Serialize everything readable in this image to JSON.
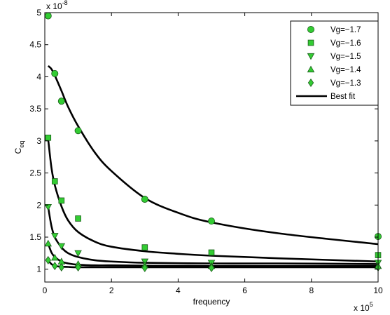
{
  "chart_data": {
    "type": "scatter",
    "xlabel": "frequency",
    "ylabel": "C",
    "ylabel_sub": "eq",
    "x_exponent_label": "x 10",
    "x_exponent": "5",
    "y_exponent_label": "x 10",
    "y_exponent": "-8",
    "xlim": [
      0,
      1000000
    ],
    "ylim": [
      8e-09,
      5e-08
    ],
    "x_ticks": [
      0,
      200000,
      400000,
      600000,
      800000,
      1000000
    ],
    "x_tick_labels": [
      "0",
      "2",
      "4",
      "6",
      "8",
      "10"
    ],
    "y_ticks": [
      1e-08,
      1.5e-08,
      2e-08,
      2.5e-08,
      3e-08,
      3.5e-08,
      4e-08,
      4.5e-08,
      5e-08
    ],
    "y_tick_labels": [
      "1",
      "1.5",
      "2",
      "2.5",
      "3",
      "3.5",
      "4",
      "4.5",
      "5"
    ],
    "grid": false,
    "legend_position": "top-right",
    "marker_color": "#33cc33",
    "fit_color": "#000000",
    "x": [
      10000,
      30000,
      50000,
      100000,
      300000,
      500000,
      1000000
    ],
    "series": [
      {
        "name": "Vg=−1.7",
        "marker": "circle",
        "values": [
          4.95e-08,
          4.05e-08,
          3.62e-08,
          3.16e-08,
          2.09e-08,
          1.75e-08,
          1.51e-08
        ]
      },
      {
        "name": "Vg=−1.6",
        "marker": "square",
        "values": [
          3.05e-08,
          2.37e-08,
          2.07e-08,
          1.79e-08,
          1.34e-08,
          1.26e-08,
          1.22e-08
        ]
      },
      {
        "name": "Vg=−1.5",
        "marker": "triangle-down",
        "values": [
          1.97e-08,
          1.52e-08,
          1.36e-08,
          1.25e-08,
          1.12e-08,
          1.1e-08,
          1.1e-08
        ]
      },
      {
        "name": "Vg=−1.4",
        "marker": "triangle-up",
        "values": [
          1.4e-08,
          1.18e-08,
          1.12e-08,
          1.08e-08,
          1.06e-08,
          1.05e-08,
          1.05e-08
        ]
      },
      {
        "name": "Vg=−1.3",
        "marker": "diamond",
        "values": [
          1.14e-08,
          1.05e-08,
          1.03e-08,
          1.03e-08,
          1.02e-08,
          1.02e-08,
          1.03e-08
        ]
      }
    ],
    "fit_legend": "Best fit",
    "fits": [
      {
        "series": "Vg=−1.7",
        "x": [
          10000,
          20000,
          30000,
          50000,
          70000,
          100000,
          150000,
          200000,
          300000,
          400000,
          500000,
          700000,
          1000000
        ],
        "y": [
          4.17e-08,
          4.12e-08,
          4.02e-08,
          3.78e-08,
          3.53e-08,
          3.23e-08,
          2.82e-08,
          2.53e-08,
          2.11e-08,
          1.88e-08,
          1.73e-08,
          1.56e-08,
          1.39e-08
        ]
      },
      {
        "series": "Vg=−1.6",
        "x": [
          10000,
          20000,
          30000,
          50000,
          70000,
          100000,
          150000,
          200000,
          300000,
          400000,
          500000,
          700000,
          1000000
        ],
        "y": [
          3.03e-08,
          2.58e-08,
          2.31e-08,
          1.98e-08,
          1.76e-08,
          1.58e-08,
          1.43e-08,
          1.35e-08,
          1.28e-08,
          1.24e-08,
          1.21e-08,
          1.17e-08,
          1.12e-08
        ]
      },
      {
        "series": "Vg=−1.5",
        "x": [
          10000,
          20000,
          30000,
          50000,
          70000,
          100000,
          150000,
          200000,
          300000,
          500000,
          700000,
          1000000
        ],
        "y": [
          1.97e-08,
          1.67e-08,
          1.5e-08,
          1.34e-08,
          1.25e-08,
          1.19e-08,
          1.14e-08,
          1.12e-08,
          1.1e-08,
          1.09e-08,
          1.09e-08,
          1.08e-08
        ]
      },
      {
        "series": "Vg=−1.4",
        "x": [
          10000,
          20000,
          30000,
          50000,
          70000,
          100000,
          150000,
          200000,
          300000,
          500000,
          1000000
        ],
        "y": [
          1.4e-08,
          1.26e-08,
          1.19e-08,
          1.12e-08,
          1.09e-08,
          1.07e-08,
          1.06e-08,
          1.06e-08,
          1.055e-08,
          1.05e-08,
          1.05e-08
        ]
      },
      {
        "series": "Vg=−1.3",
        "x": [
          10000,
          20000,
          30000,
          50000,
          70000,
          100000,
          200000,
          300000,
          500000,
          1000000
        ],
        "y": [
          1.14e-08,
          1.08e-08,
          1.05e-08,
          1.04e-08,
          1.035e-08,
          1.03e-08,
          1.03e-08,
          1.03e-08,
          1.03e-08,
          1.03e-08
        ]
      }
    ]
  }
}
